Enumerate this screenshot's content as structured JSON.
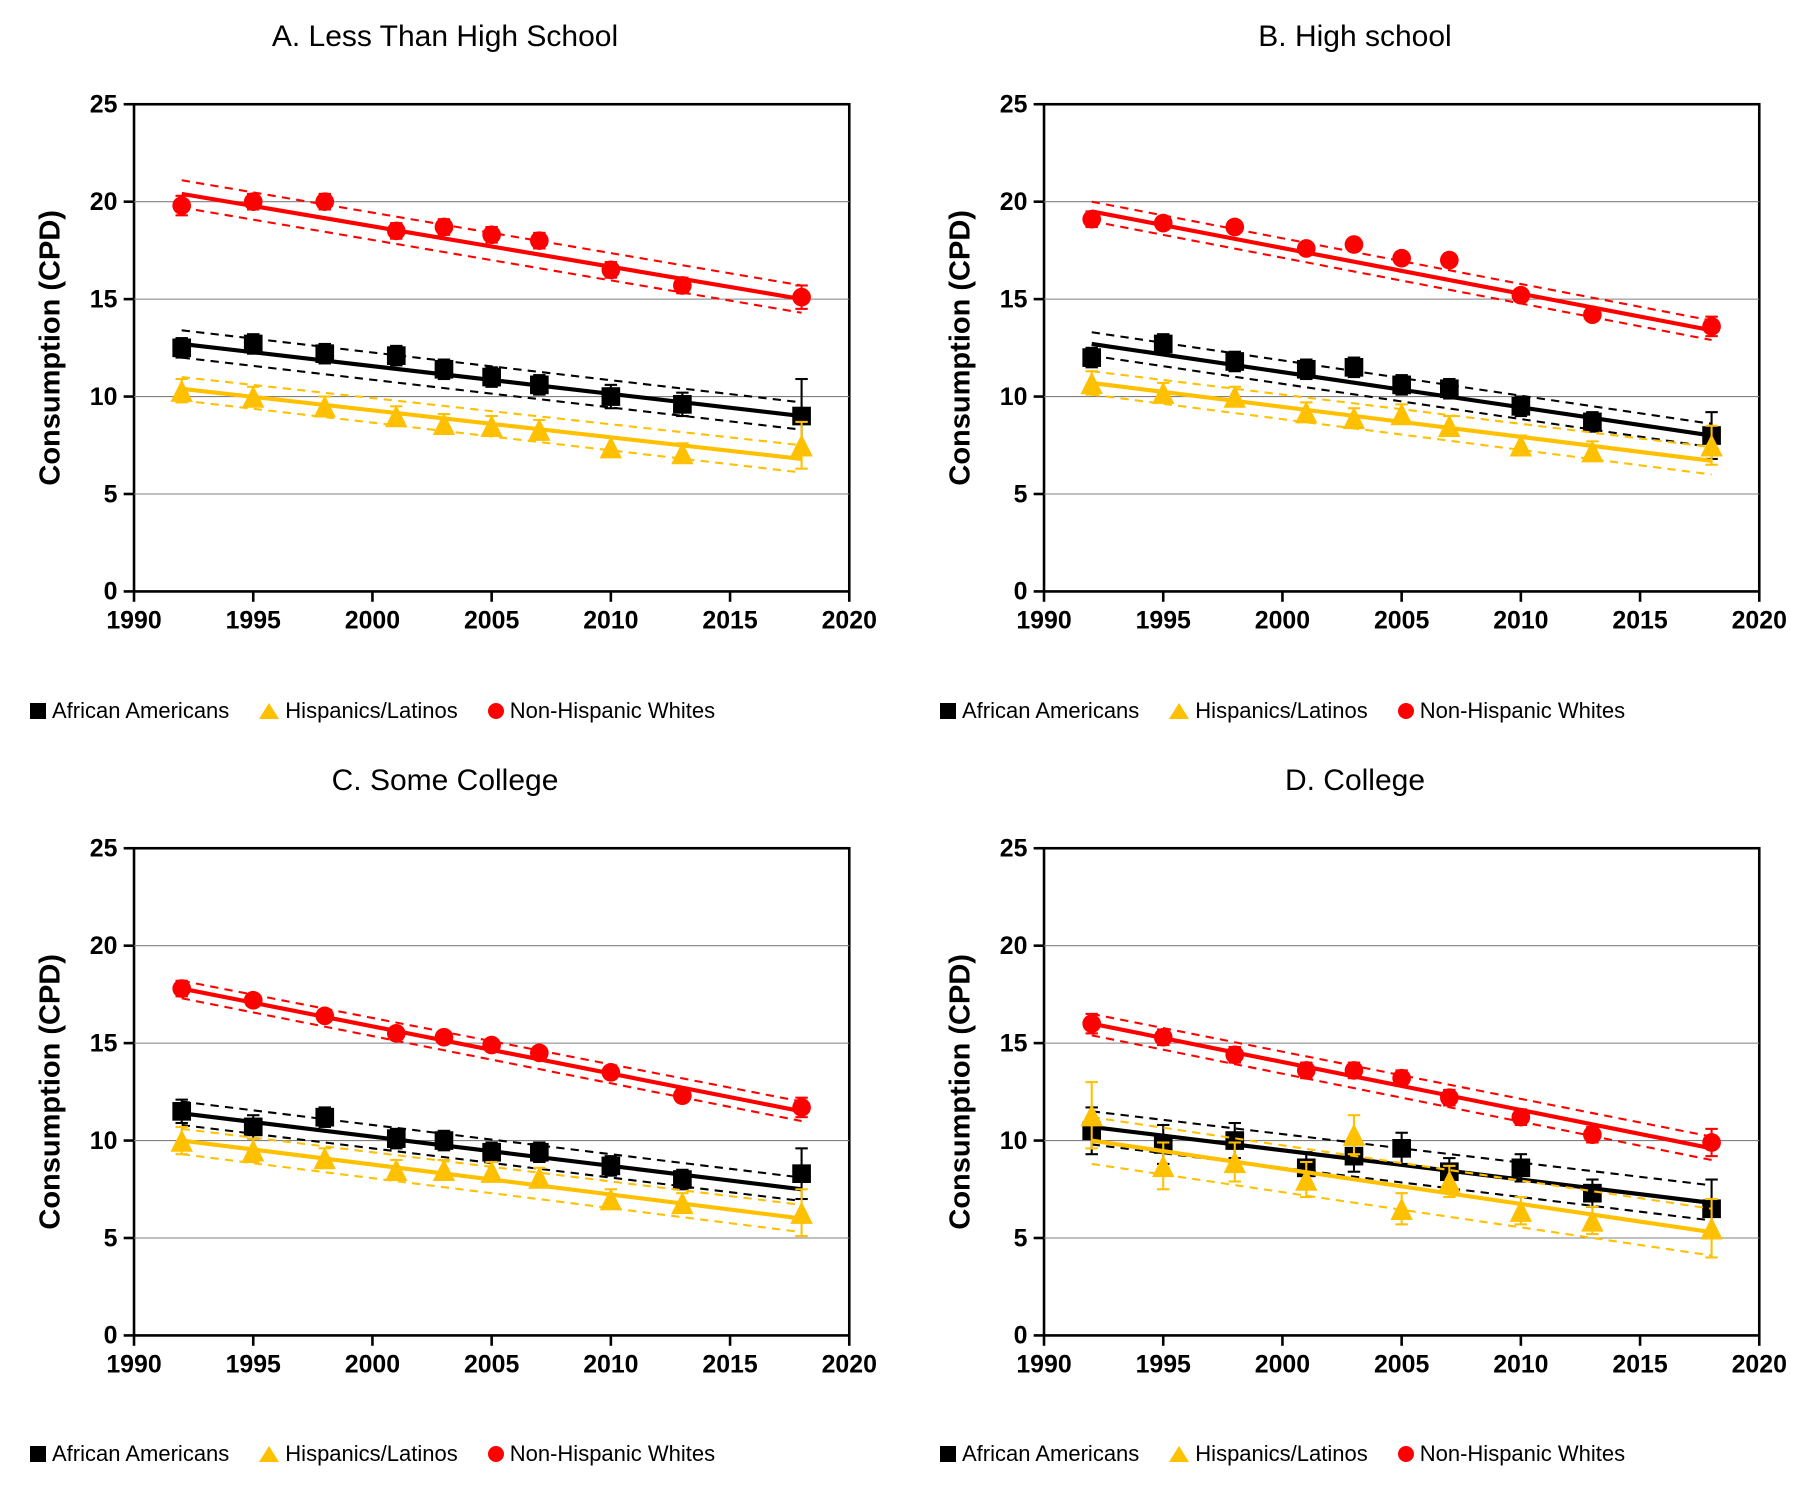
{
  "global": {
    "background_color": "#ffffff",
    "grid_color": "#808080",
    "axis_color": "#000000",
    "tick_fontsize": 24,
    "tick_fontweight": "bold",
    "axis_title_fontsize": 28,
    "panel_title_fontsize": 30,
    "legend_fontsize": 22,
    "line_width": 4,
    "ci_dash": "8 6",
    "marker_size": 9,
    "ylabel": "Consumption (CPD)",
    "xlim": [
      1990,
      2020
    ],
    "ylim": [
      0,
      25
    ],
    "xticks": [
      1990,
      1995,
      2000,
      2005,
      2010,
      2015,
      2020
    ],
    "yticks": [
      0,
      5,
      10,
      15,
      20,
      25
    ],
    "x_data_years": [
      1992,
      1995,
      1998,
      2001,
      2003,
      2005,
      2007,
      2010,
      2013,
      2018
    ],
    "series_meta": {
      "african_americans": {
        "label": "African Americans",
        "color": "#000000",
        "marker": "square"
      },
      "hispanics_latinos": {
        "label": "Hispanics/Latinos",
        "color": "#ffc000",
        "marker": "triangle"
      },
      "non_hispanic_whites": {
        "label": "Non-Hispanic Whites",
        "color": "#ff0000",
        "marker": "circle"
      }
    }
  },
  "panels": [
    {
      "id": "A",
      "title": "A. Less Than High School",
      "series": {
        "african_americans": {
          "values": [
            12.5,
            12.7,
            12.2,
            12.1,
            11.4,
            11.0,
            10.6,
            10.0,
            9.6,
            9.0
          ],
          "errors": [
            0.5,
            0.5,
            0.5,
            0.5,
            0.5,
            0.5,
            0.5,
            0.6,
            0.6,
            1.9
          ],
          "trend": {
            "y_start": 12.7,
            "y_end": 9.0
          },
          "ci_upper": {
            "y_start": 13.4,
            "y_end": 9.7
          },
          "ci_lower": {
            "y_start": 12.0,
            "y_end": 8.3
          }
        },
        "hispanics_latinos": {
          "values": [
            10.3,
            10.0,
            9.5,
            9.0,
            8.6,
            8.5,
            8.3,
            7.4,
            7.1,
            7.5
          ],
          "errors": [
            0.6,
            0.5,
            0.5,
            0.5,
            0.5,
            0.5,
            0.5,
            0.5,
            0.5,
            1.2
          ],
          "trend": {
            "y_start": 10.4,
            "y_end": 6.8
          },
          "ci_upper": {
            "y_start": 11.0,
            "y_end": 7.5
          },
          "ci_lower": {
            "y_start": 9.8,
            "y_end": 6.1
          }
        },
        "non_hispanic_whites": {
          "values": [
            19.8,
            20.0,
            20.0,
            18.5,
            18.7,
            18.3,
            18.0,
            16.5,
            15.7,
            15.1
          ],
          "errors": [
            0.5,
            0.4,
            0.4,
            0.4,
            0.4,
            0.4,
            0.4,
            0.4,
            0.4,
            0.6
          ],
          "trend": {
            "y_start": 20.4,
            "y_end": 15.0
          },
          "ci_upper": {
            "y_start": 21.1,
            "y_end": 15.7
          },
          "ci_lower": {
            "y_start": 19.7,
            "y_end": 14.3
          }
        }
      }
    },
    {
      "id": "B",
      "title": "B. High school",
      "series": {
        "african_americans": {
          "values": [
            12.0,
            12.7,
            11.8,
            11.4,
            11.5,
            10.6,
            10.4,
            9.5,
            8.7,
            8.0
          ],
          "errors": [
            0.5,
            0.5,
            0.5,
            0.5,
            0.5,
            0.5,
            0.5,
            0.5,
            0.5,
            1.2
          ],
          "trend": {
            "y_start": 12.7,
            "y_end": 8.0
          },
          "ci_upper": {
            "y_start": 13.3,
            "y_end": 8.6
          },
          "ci_lower": {
            "y_start": 12.1,
            "y_end": 7.4
          }
        },
        "hispanics_latinos": {
          "values": [
            10.7,
            10.2,
            10.0,
            9.2,
            8.9,
            9.1,
            8.5,
            7.5,
            7.2,
            7.5
          ],
          "errors": [
            0.6,
            0.5,
            0.5,
            0.5,
            0.5,
            0.5,
            0.5,
            0.5,
            0.5,
            1.0
          ],
          "trend": {
            "y_start": 10.7,
            "y_end": 6.7
          },
          "ci_upper": {
            "y_start": 11.3,
            "y_end": 7.4
          },
          "ci_lower": {
            "y_start": 10.1,
            "y_end": 6.0
          }
        },
        "non_hispanic_whites": {
          "values": [
            19.1,
            18.9,
            18.7,
            17.6,
            17.8,
            17.1,
            17.0,
            15.2,
            14.2,
            13.6
          ],
          "errors": [
            0.4,
            0.3,
            0.3,
            0.3,
            0.3,
            0.3,
            0.3,
            0.3,
            0.3,
            0.5
          ],
          "trend": {
            "y_start": 19.5,
            "y_end": 13.4
          },
          "ci_upper": {
            "y_start": 20.0,
            "y_end": 13.9
          },
          "ci_lower": {
            "y_start": 19.0,
            "y_end": 12.9
          }
        }
      }
    },
    {
      "id": "C",
      "title": "C. Some College",
      "series": {
        "african_americans": {
          "values": [
            11.5,
            10.7,
            11.2,
            10.1,
            10.0,
            9.4,
            9.4,
            8.7,
            8.0,
            8.3
          ],
          "errors": [
            0.6,
            0.6,
            0.5,
            0.5,
            0.5,
            0.5,
            0.5,
            0.5,
            0.5,
            1.3
          ],
          "trend": {
            "y_start": 11.4,
            "y_end": 7.5
          },
          "ci_upper": {
            "y_start": 12.0,
            "y_end": 8.1
          },
          "ci_lower": {
            "y_start": 10.8,
            "y_end": 6.9
          }
        },
        "hispanics_latinos": {
          "values": [
            10.0,
            9.5,
            9.1,
            8.5,
            8.5,
            8.4,
            8.1,
            7.0,
            6.8,
            6.3
          ],
          "errors": [
            0.7,
            0.6,
            0.5,
            0.5,
            0.5,
            0.5,
            0.5,
            0.5,
            0.5,
            1.2
          ],
          "trend": {
            "y_start": 10.0,
            "y_end": 6.0
          },
          "ci_upper": {
            "y_start": 10.6,
            "y_end": 6.7
          },
          "ci_lower": {
            "y_start": 9.3,
            "y_end": 5.3
          }
        },
        "non_hispanic_whites": {
          "values": [
            17.8,
            17.2,
            16.4,
            15.5,
            15.3,
            14.9,
            14.5,
            13.5,
            12.3,
            11.7
          ],
          "errors": [
            0.4,
            0.3,
            0.3,
            0.3,
            0.3,
            0.3,
            0.3,
            0.3,
            0.3,
            0.5
          ],
          "trend": {
            "y_start": 17.8,
            "y_end": 11.5
          },
          "ci_upper": {
            "y_start": 18.2,
            "y_end": 12.0
          },
          "ci_lower": {
            "y_start": 17.3,
            "y_end": 11.0
          }
        }
      }
    },
    {
      "id": "D",
      "title": "D. College",
      "series": {
        "african_americans": {
          "values": [
            10.5,
            9.8,
            10.0,
            8.6,
            9.2,
            9.6,
            8.4,
            8.6,
            7.3,
            6.5
          ],
          "errors": [
            1.2,
            1.0,
            0.9,
            0.8,
            0.8,
            0.8,
            0.7,
            0.7,
            0.7,
            1.5
          ],
          "trend": {
            "y_start": 10.7,
            "y_end": 6.8
          },
          "ci_upper": {
            "y_start": 11.5,
            "y_end": 7.7
          },
          "ci_lower": {
            "y_start": 9.8,
            "y_end": 5.9
          }
        },
        "hispanics_latinos": {
          "values": [
            11.3,
            8.7,
            8.9,
            8.0,
            10.3,
            6.5,
            7.9,
            6.4,
            5.9,
            5.5
          ],
          "errors": [
            1.7,
            1.2,
            1.0,
            0.9,
            1.0,
            0.8,
            0.8,
            0.7,
            0.7,
            1.5
          ],
          "trend": {
            "y_start": 10.0,
            "y_end": 5.3
          },
          "ci_upper": {
            "y_start": 11.2,
            "y_end": 6.5
          },
          "ci_lower": {
            "y_start": 8.8,
            "y_end": 4.1
          }
        },
        "non_hispanic_whites": {
          "values": [
            16.0,
            15.3,
            14.4,
            13.6,
            13.6,
            13.2,
            12.2,
            11.2,
            10.3,
            9.9
          ],
          "errors": [
            0.5,
            0.4,
            0.4,
            0.4,
            0.4,
            0.4,
            0.4,
            0.4,
            0.4,
            0.7
          ],
          "trend": {
            "y_start": 16.0,
            "y_end": 9.6
          },
          "ci_upper": {
            "y_start": 16.5,
            "y_end": 10.2
          },
          "ci_lower": {
            "y_start": 15.4,
            "y_end": 9.0
          }
        }
      }
    }
  ]
}
